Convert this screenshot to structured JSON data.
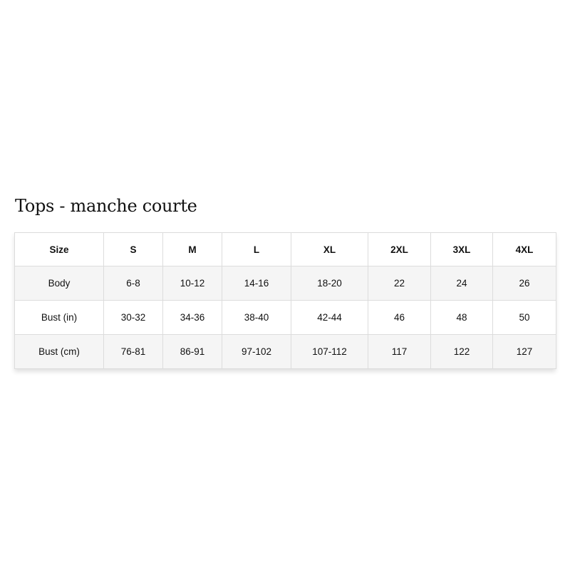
{
  "title": "Tops - manche courte",
  "table": {
    "headers": [
      "Size",
      "S",
      "M",
      "L",
      "XL",
      "2XL",
      "3XL",
      "4XL"
    ],
    "rows": [
      [
        "Body",
        "6-8",
        "10-12",
        "14-16",
        "18-20",
        "22",
        "24",
        "26"
      ],
      [
        "Bust (in)",
        "30-32",
        "34-36",
        "38-40",
        "42-44",
        "46",
        "48",
        "50"
      ],
      [
        "Bust (cm)",
        "76-81",
        "86-91",
        "97-102",
        "107-112",
        "117",
        "122",
        "127"
      ]
    ]
  }
}
